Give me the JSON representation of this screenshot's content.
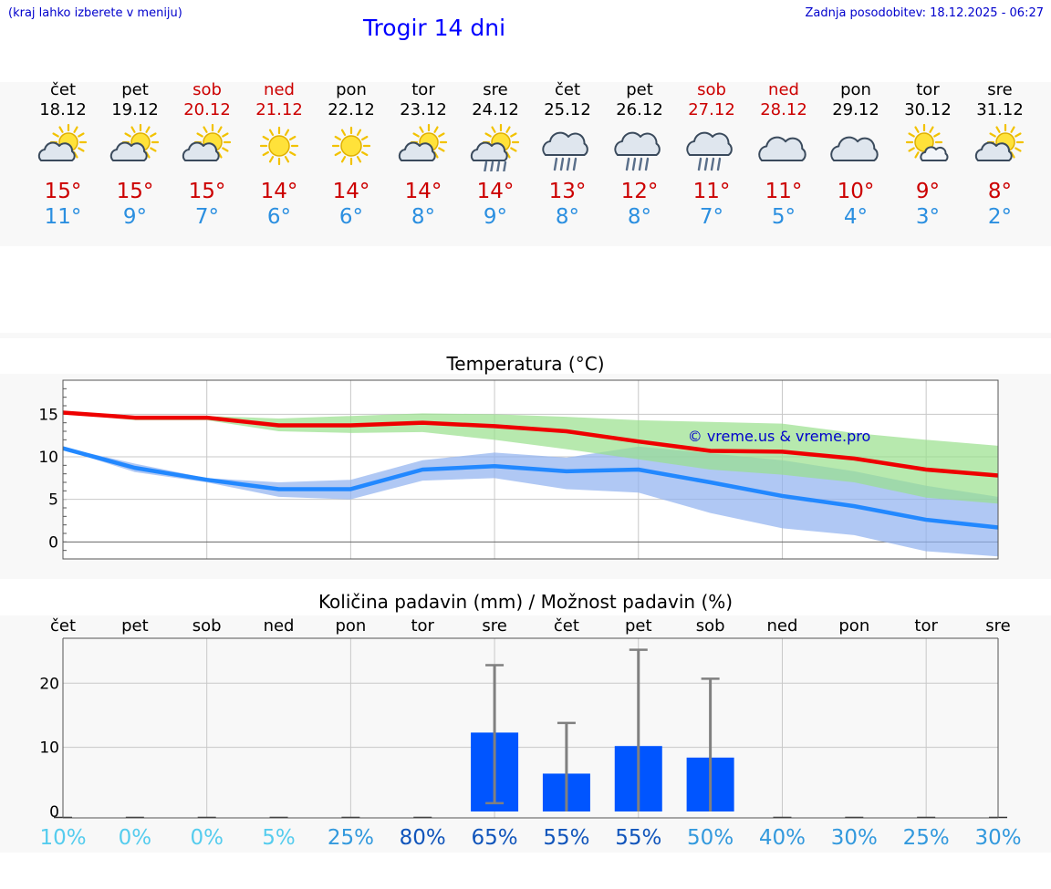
{
  "header": {
    "hint": "(kraj lahko izberete v meniju)",
    "title": "Trogir 14 dni",
    "updated": "Zadnja posodobitev: 18.12.2025 - 06:27"
  },
  "days": [
    {
      "name": "čet",
      "date": "18.12",
      "icon": "sun-cloud",
      "max": "15°",
      "min": "11°",
      "weekend": false
    },
    {
      "name": "pet",
      "date": "19.12",
      "icon": "sun-cloud",
      "max": "15°",
      "min": "9°",
      "weekend": false
    },
    {
      "name": "sob",
      "date": "20.12",
      "icon": "sun-cloud",
      "max": "15°",
      "min": "7°",
      "weekend": true
    },
    {
      "name": "ned",
      "date": "21.12",
      "icon": "sun",
      "max": "14°",
      "min": "6°",
      "weekend": true
    },
    {
      "name": "pon",
      "date": "22.12",
      "icon": "sun",
      "max": "14°",
      "min": "6°",
      "weekend": false
    },
    {
      "name": "tor",
      "date": "23.12",
      "icon": "sun-cloud",
      "max": "14°",
      "min": "8°",
      "weekend": false
    },
    {
      "name": "sre",
      "date": "24.12",
      "icon": "sun-cloud-rain",
      "max": "14°",
      "min": "9°",
      "weekend": false
    },
    {
      "name": "čet",
      "date": "25.12",
      "icon": "cloud-rain",
      "max": "13°",
      "min": "8°",
      "weekend": false
    },
    {
      "name": "pet",
      "date": "26.12",
      "icon": "cloud-rain",
      "max": "12°",
      "min": "8°",
      "weekend": false
    },
    {
      "name": "sob",
      "date": "27.12",
      "icon": "cloud-rain",
      "max": "11°",
      "min": "7°",
      "weekend": true
    },
    {
      "name": "ned",
      "date": "28.12",
      "icon": "cloud",
      "max": "11°",
      "min": "5°",
      "weekend": true
    },
    {
      "name": "pon",
      "date": "29.12",
      "icon": "cloud",
      "max": "10°",
      "min": "4°",
      "weekend": false
    },
    {
      "name": "tor",
      "date": "30.12",
      "icon": "sun-small-cloud",
      "max": "9°",
      "min": "3°",
      "weekend": false
    },
    {
      "name": "sre",
      "date": "31.12",
      "icon": "sun-cloud",
      "max": "8°",
      "min": "2°",
      "weekend": false
    }
  ],
  "colors": {
    "max_line": "#ee0000",
    "min_line": "#2288ff",
    "max_band": "#99e08c",
    "min_band": "#8fb0f0",
    "bar": "#0055ff",
    "whisker": "#808080"
  },
  "chart_data": [
    {
      "type": "line",
      "title": "Temperatura (°C)",
      "watermark": "© vreme.us & vreme.pro",
      "ylim": [
        -2,
        19
      ],
      "yticks": [
        "0",
        "5",
        "10",
        "15"
      ],
      "yticks_values": [
        0,
        5,
        10,
        15
      ],
      "x": [
        0,
        1,
        2,
        3,
        4,
        5,
        6,
        7,
        8,
        9,
        10,
        11,
        12,
        13
      ],
      "series": [
        {
          "name": "max",
          "values": [
            15.2,
            14.6,
            14.6,
            13.7,
            13.7,
            14.0,
            13.6,
            13.0,
            11.8,
            10.7,
            10.6,
            9.8,
            8.5,
            7.8
          ]
        },
        {
          "name": "max_band_upper",
          "values": [
            15.3,
            14.8,
            14.8,
            14.5,
            14.8,
            15.1,
            15.0,
            14.7,
            14.3,
            14.1,
            13.9,
            12.8,
            12.0,
            11.3
          ]
        },
        {
          "name": "max_band_lower",
          "values": [
            15.1,
            14.3,
            14.3,
            13.0,
            12.8,
            12.9,
            12.0,
            10.9,
            9.7,
            8.5,
            7.9,
            7.0,
            5.2,
            4.5
          ]
        },
        {
          "name": "min",
          "values": [
            11.0,
            8.7,
            7.3,
            6.2,
            6.2,
            8.5,
            8.9,
            8.3,
            8.5,
            7.0,
            5.4,
            4.2,
            2.6,
            1.7
          ]
        },
        {
          "name": "min_band_upper",
          "values": [
            11.1,
            9.2,
            7.5,
            7.0,
            7.3,
            9.6,
            10.5,
            9.9,
            11.2,
            10.4,
            9.6,
            8.3,
            6.6,
            5.3
          ]
        },
        {
          "name": "min_band_lower",
          "values": [
            10.9,
            8.2,
            7.0,
            5.3,
            5.0,
            7.2,
            7.5,
            6.2,
            5.8,
            3.4,
            1.6,
            0.8,
            -1.1,
            -1.7
          ]
        }
      ]
    },
    {
      "type": "bar",
      "title": "Količina padavin (mm) / Možnost padavin (%)",
      "ylim": [
        -1,
        27
      ],
      "yticks": [
        "0",
        "10",
        "20"
      ],
      "yticks_values": [
        0,
        10,
        20
      ],
      "categories": [
        "čet",
        "pet",
        "sob",
        "ned",
        "pon",
        "tor",
        "sre",
        "čet",
        "pet",
        "sob",
        "ned",
        "pon",
        "tor",
        "sre"
      ],
      "values": [
        0,
        0,
        0,
        0,
        0,
        0,
        12.3,
        5.9,
        10.2,
        8.4,
        0,
        0,
        0,
        0
      ],
      "error_high": [
        0,
        0,
        0,
        0,
        0,
        0,
        22.8,
        13.8,
        25.2,
        20.7,
        0,
        0,
        0,
        0
      ],
      "error_low": [
        0,
        0,
        0,
        0,
        0,
        0,
        1.3,
        0,
        0,
        0,
        0,
        0,
        0,
        0
      ],
      "probability": [
        "10%",
        "0%",
        "0%",
        "5%",
        "25%",
        "80%",
        "65%",
        "55%",
        "55%",
        "50%",
        "40%",
        "30%",
        "25%",
        "30%"
      ],
      "probability_colors": [
        "#55ccee",
        "#55ccee",
        "#55ccee",
        "#55ccee",
        "#3399dd",
        "#1155bb",
        "#1155bb",
        "#1155bb",
        "#1155bb",
        "#3399dd",
        "#3399dd",
        "#3399dd",
        "#3399dd",
        "#3399dd"
      ]
    }
  ]
}
